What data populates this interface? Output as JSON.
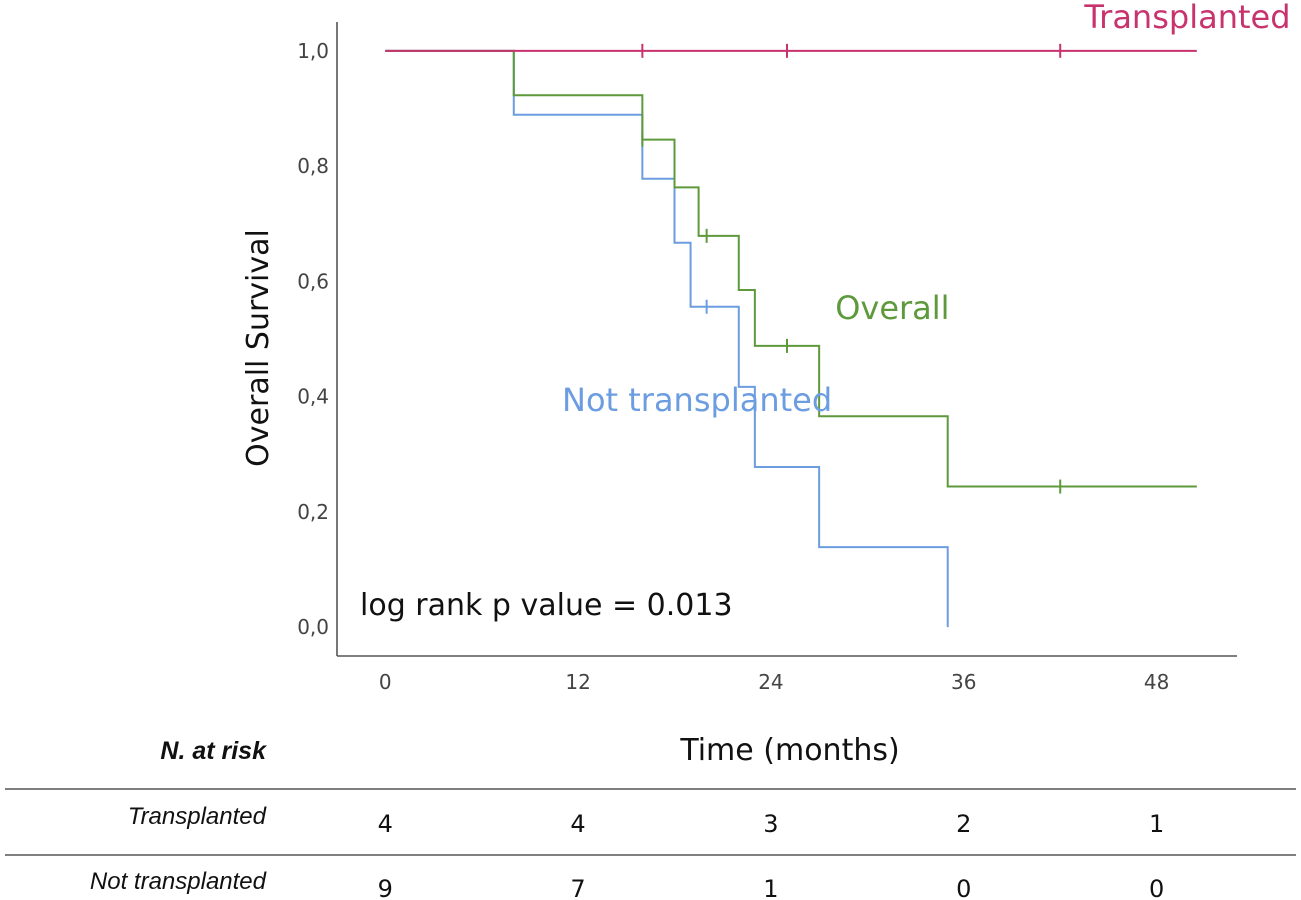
{
  "chart_data": {
    "type": "line",
    "subtype": "kaplan-meier",
    "title": "",
    "xlabel": "Time (months)",
    "ylabel": "Overall Survival",
    "xlim": [
      -3,
      53
    ],
    "ylim": [
      -0.05,
      1.05
    ],
    "x_ticks": [
      0,
      12,
      24,
      36,
      48
    ],
    "y_ticks": [
      0.0,
      0.2,
      0.4,
      0.6,
      0.8,
      1.0
    ],
    "y_tick_labels": [
      "0,0",
      "0,2",
      "0,4",
      "0,6",
      "0,8",
      "1,0"
    ],
    "grid": false,
    "annotation": "log rank p value = 0.013",
    "series": [
      {
        "name": "Transplanted",
        "color": "#c8336e",
        "label_pos": [
          43.5,
          1.04
        ],
        "steps": [
          [
            0,
            1.0
          ],
          [
            50.5,
            1.0
          ]
        ],
        "censored": [
          [
            16,
            1.0
          ],
          [
            25,
            1.0
          ],
          [
            42,
            1.0
          ]
        ]
      },
      {
        "name": "Overall",
        "color": "#5e9a3c",
        "label_pos": [
          28,
          0.535
        ],
        "steps": [
          [
            0,
            1.0
          ],
          [
            8,
            0.923
          ],
          [
            16,
            0.846
          ],
          [
            18,
            0.763
          ],
          [
            19.5,
            0.679
          ],
          [
            22,
            0.585
          ],
          [
            23,
            0.488
          ],
          [
            27,
            0.366
          ],
          [
            35,
            0.244
          ],
          [
            50.5,
            0.244
          ]
        ],
        "censored": [
          [
            16,
            0.846
          ],
          [
            20,
            0.679
          ],
          [
            25,
            0.488
          ],
          [
            42,
            0.244
          ]
        ]
      },
      {
        "name": "Not transplanted",
        "color": "#6b9de0",
        "label_pos": [
          11,
          0.375
        ],
        "steps": [
          [
            0,
            1.0
          ],
          [
            8,
            0.889
          ],
          [
            16,
            0.778
          ],
          [
            18,
            0.667
          ],
          [
            19,
            0.556
          ],
          [
            22,
            0.417
          ],
          [
            23,
            0.278
          ],
          [
            27,
            0.139
          ],
          [
            35,
            0.0
          ]
        ],
        "censored": [
          [
            20,
            0.556
          ]
        ]
      }
    ]
  },
  "risk_table": {
    "header": "N. at risk",
    "times": [
      0,
      12,
      24,
      36,
      48
    ],
    "rows": [
      {
        "label": "Transplanted",
        "values": [
          "4",
          "4",
          "3",
          "2",
          "1"
        ]
      },
      {
        "label": "Not transplanted",
        "values": [
          "9",
          "7",
          "1",
          "0",
          "0"
        ]
      }
    ]
  }
}
